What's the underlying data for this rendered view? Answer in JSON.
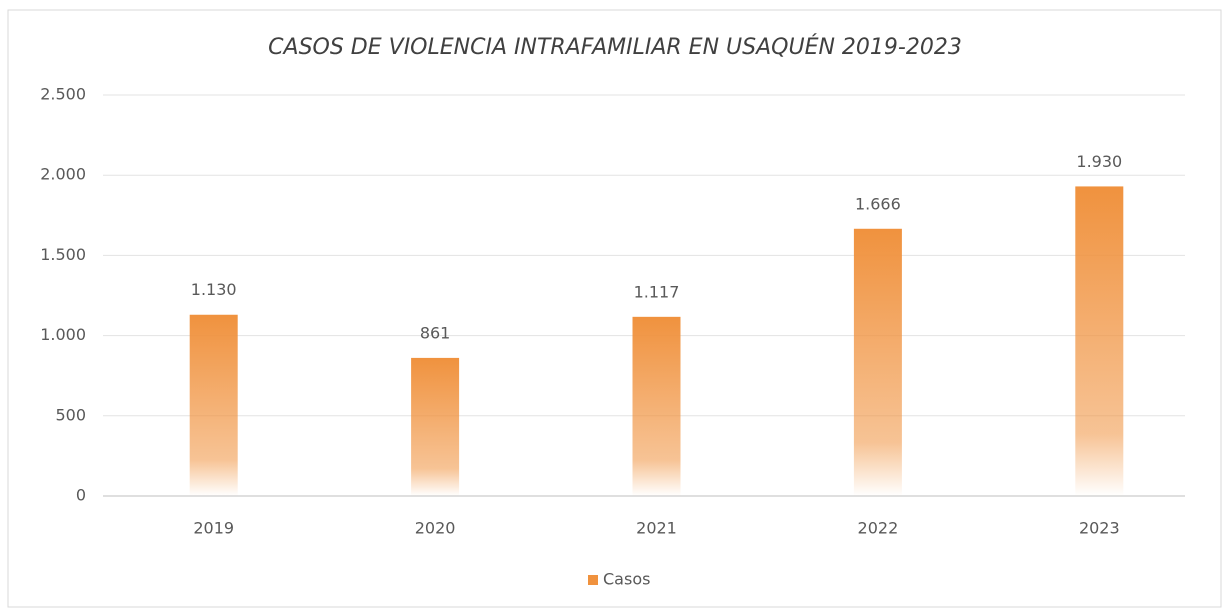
{
  "chart_data": {
    "type": "bar",
    "title": "CASOS DE VIOLENCIA INTRAFAMILIAR EN USAQUÉN 2019-2023",
    "categories": [
      "2019",
      "2020",
      "2021",
      "2022",
      "2023"
    ],
    "series": [
      {
        "name": "Casos",
        "color": "#f0923e",
        "values": [
          1130,
          861,
          1117,
          1666,
          1930
        ],
        "value_labels": [
          "1.130",
          "861",
          "1.117",
          "1.666",
          "1.930"
        ]
      }
    ],
    "ylim": [
      0,
      2500
    ],
    "yticks": [
      0,
      500,
      {
        "value": 1000,
        "label": "1.000"
      },
      {
        "value": 1500,
        "label": "1.500"
      },
      {
        "value": 2000,
        "label": "2.000"
      },
      {
        "value": 2500,
        "label": "2.500"
      }
    ],
    "grid": true,
    "legend": "bottom"
  }
}
